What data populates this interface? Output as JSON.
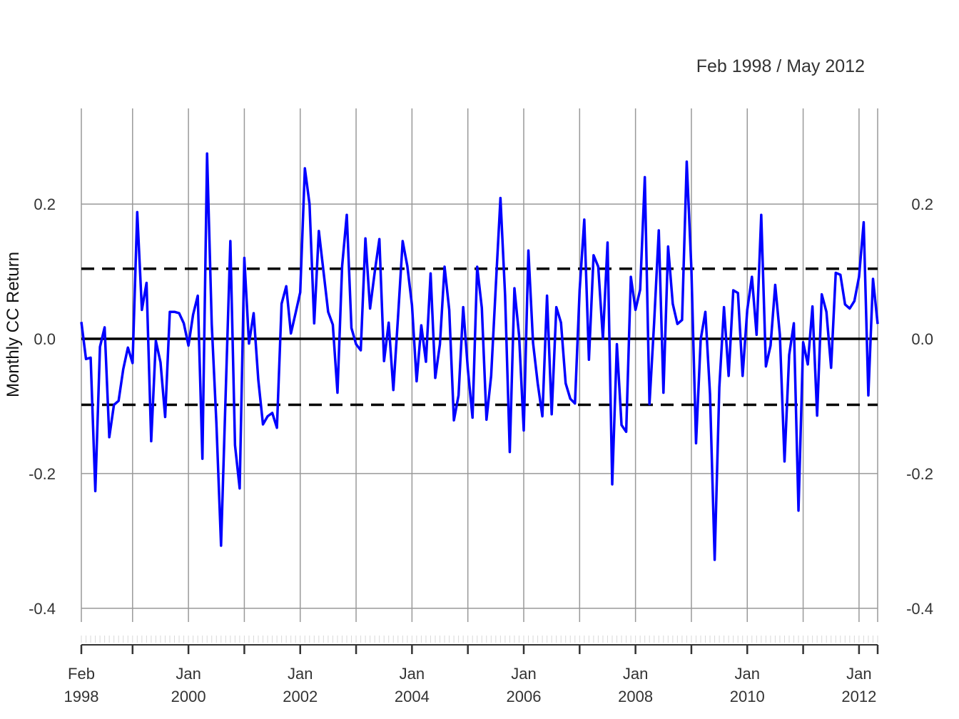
{
  "chart_data": {
    "type": "line",
    "title": "",
    "date_range_label": "Feb 1998 / May 2012",
    "ylabel": "Monthly CC Return",
    "xlabel": "",
    "ylim": [
      -0.42,
      0.34
    ],
    "yticks": [
      {
        "value": 0.2,
        "label": "0.2"
      },
      {
        "value": 0.0,
        "label": "0.0"
      },
      {
        "value": -0.2,
        "label": "-0.2"
      },
      {
        "value": -0.4,
        "label": "-0.4"
      }
    ],
    "x_start": {
      "year": 1998,
      "month": 2
    },
    "x_end": {
      "year": 2012,
      "month": 5
    },
    "x_tick_labels": [
      {
        "year": 1998,
        "month": 2,
        "label": "Feb",
        "sublabel": "1998"
      },
      {
        "year": 2000,
        "month": 1,
        "label": "Jan",
        "sublabel": "2000"
      },
      {
        "year": 2002,
        "month": 1,
        "label": "Jan",
        "sublabel": "2002"
      },
      {
        "year": 2004,
        "month": 1,
        "label": "Jan",
        "sublabel": "2004"
      },
      {
        "year": 2006,
        "month": 1,
        "label": "Jan",
        "sublabel": "2006"
      },
      {
        "year": 2008,
        "month": 1,
        "label": "Jan",
        "sublabel": "2008"
      },
      {
        "year": 2010,
        "month": 1,
        "label": "Jan",
        "sublabel": "2010"
      },
      {
        "year": 2012,
        "month": 1,
        "label": "Jan",
        "sublabel": "2012"
      }
    ],
    "x_grid_marks": [
      {
        "year": 1998,
        "month": 2
      },
      {
        "year": 1999,
        "month": 1
      },
      {
        "year": 2000,
        "month": 1
      },
      {
        "year": 2001,
        "month": 1
      },
      {
        "year": 2002,
        "month": 1
      },
      {
        "year": 2003,
        "month": 1
      },
      {
        "year": 2004,
        "month": 1
      },
      {
        "year": 2005,
        "month": 1
      },
      {
        "year": 2006,
        "month": 1
      },
      {
        "year": 2007,
        "month": 1
      },
      {
        "year": 2008,
        "month": 1
      },
      {
        "year": 2009,
        "month": 1
      },
      {
        "year": 2010,
        "month": 1
      },
      {
        "year": 2011,
        "month": 1
      },
      {
        "year": 2012,
        "month": 1
      },
      {
        "year": 2012,
        "month": 5
      }
    ],
    "reference_lines": [
      {
        "value": 0.0,
        "style": "solid",
        "color": "#000000"
      },
      {
        "value": 0.104,
        "style": "dashed",
        "color": "#000000"
      },
      {
        "value": -0.098,
        "style": "dashed",
        "color": "#000000"
      }
    ],
    "grid": true,
    "series": [
      {
        "color": "#0000ff",
        "values": [
          0.025,
          -0.03,
          -0.028,
          -0.226,
          -0.012,
          0.017,
          -0.146,
          -0.098,
          -0.092,
          -0.045,
          -0.013,
          -0.036,
          0.188,
          0.043,
          0.083,
          -0.152,
          -0.003,
          -0.035,
          -0.116,
          0.04,
          0.04,
          0.038,
          0.023,
          -0.01,
          0.036,
          0.064,
          -0.178,
          0.275,
          0.022,
          -0.125,
          -0.307,
          -0.08,
          0.145,
          -0.158,
          -0.222,
          0.12,
          -0.007,
          0.038,
          -0.061,
          -0.127,
          -0.115,
          -0.11,
          -0.132,
          0.052,
          0.078,
          0.008,
          0.038,
          0.069,
          0.253,
          0.2,
          0.023,
          0.16,
          0.1,
          0.04,
          0.021,
          -0.08,
          0.108,
          0.184,
          0.016,
          -0.008,
          -0.017,
          0.149,
          0.045,
          0.099,
          0.148,
          -0.033,
          0.024,
          -0.076,
          0.032,
          0.145,
          0.108,
          0.05,
          -0.063,
          0.02,
          -0.034,
          0.097,
          -0.058,
          -0.008,
          0.107,
          0.043,
          -0.121,
          -0.084,
          0.047,
          -0.045,
          -0.117,
          0.107,
          0.046,
          -0.12,
          -0.055,
          0.078,
          0.209,
          0.064,
          -0.168,
          0.075,
          0.005,
          -0.136,
          0.131,
          -0.006,
          -0.066,
          -0.115,
          0.064,
          -0.112,
          0.047,
          0.024,
          -0.066,
          -0.089,
          -0.096,
          0.072,
          0.177,
          -0.031,
          0.124,
          0.107,
          0.0,
          0.143,
          -0.216,
          -0.008,
          -0.128,
          -0.138,
          0.092,
          0.043,
          0.073,
          0.24,
          -0.097,
          0.024,
          0.161,
          -0.08,
          0.137,
          0.052,
          0.022,
          0.028,
          0.263,
          0.104,
          -0.155,
          -0.001,
          0.04,
          -0.082,
          -0.328,
          -0.072,
          0.047,
          -0.055,
          0.072,
          0.068,
          -0.055,
          0.043,
          0.092,
          0.006,
          0.184,
          -0.041,
          -0.01,
          0.08,
          0.006,
          -0.182,
          -0.024,
          0.023,
          -0.255,
          -0.005,
          -0.038,
          0.048,
          -0.114,
          0.066,
          0.04,
          -0.043,
          0.098,
          0.095,
          0.051,
          0.045,
          0.056,
          0.092,
          0.173,
          -0.084,
          0.089,
          0.022
        ]
      }
    ]
  }
}
